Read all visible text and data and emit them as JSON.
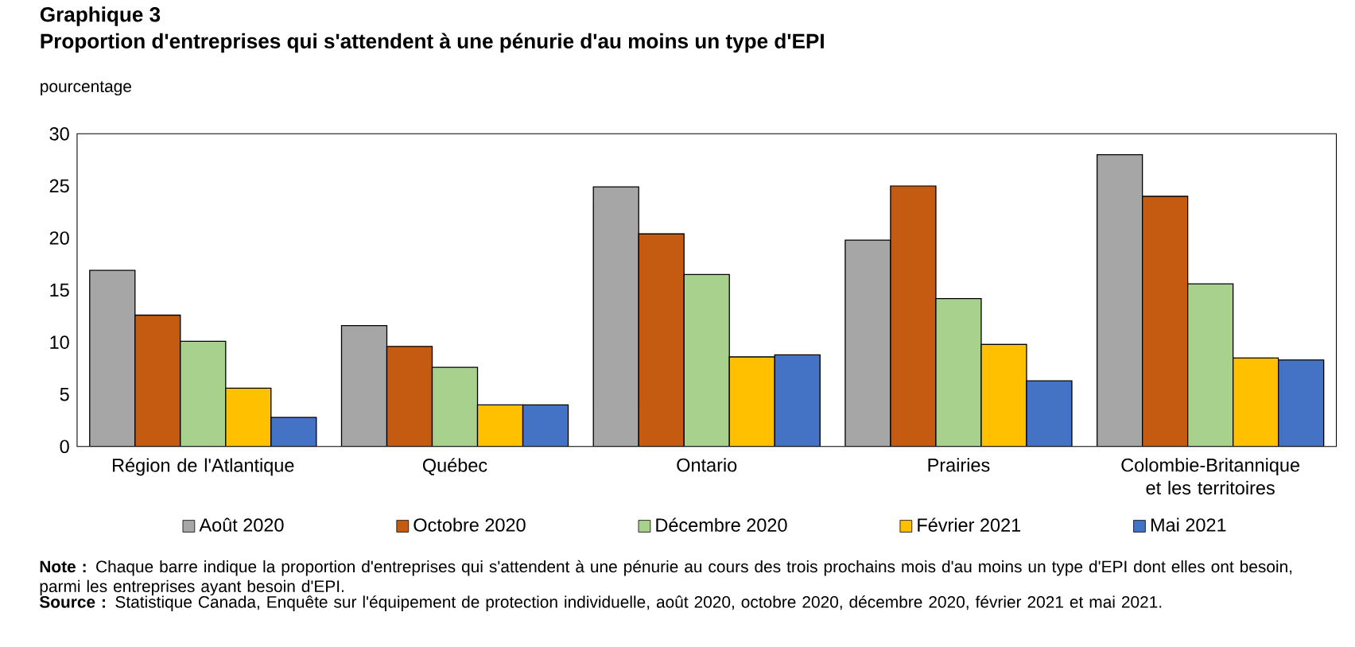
{
  "chart_data": {
    "type": "bar",
    "title": "Graphique 3",
    "subtitle": "Proportion d'entreprises qui s'attendent à une pénurie d'au moins un type d'EPI",
    "ylabel": "pourcentage",
    "categories": [
      "Région de l'Atlantique",
      "Québec",
      "Ontario",
      "Prairies",
      "Colombie-Britannique et les territoires"
    ],
    "series": [
      {
        "name": "Août 2020",
        "color": "#a6a6a6",
        "values": [
          16.9,
          11.6,
          24.9,
          19.8,
          28.0
        ]
      },
      {
        "name": "Octobre 2020",
        "color": "#c55a11",
        "values": [
          12.6,
          9.6,
          20.4,
          25.0,
          24.0
        ]
      },
      {
        "name": "Décembre 2020",
        "color": "#a9d18e",
        "values": [
          10.1,
          7.6,
          16.5,
          14.2,
          15.6
        ]
      },
      {
        "name": "Février 2021",
        "color": "#ffc000",
        "values": [
          5.6,
          4.0,
          8.6,
          9.8,
          8.5
        ]
      },
      {
        "name": "Mai 2021",
        "color": "#4472c4",
        "values": [
          2.8,
          4.0,
          8.8,
          6.3,
          8.3
        ]
      }
    ],
    "ylim": [
      0,
      30
    ],
    "yticks": [
      0,
      5,
      10,
      15,
      20,
      25,
      30
    ],
    "legend": "bottom",
    "annotations": [
      "**Note :** Chaque barre indique la proportion d'entreprises qui s'attendent à une pénurie au cours des trois prochains mois d'au moins un type d'EPI dont elles ont besoin, parmi les entreprises ayant besoin d'EPI.",
      "**Source :** Statistique Canada, Enquête sur l'équipement de protection individuelle, août 2020, octobre 2020, décembre 2020, février 2021 et mai 2021."
    ]
  }
}
